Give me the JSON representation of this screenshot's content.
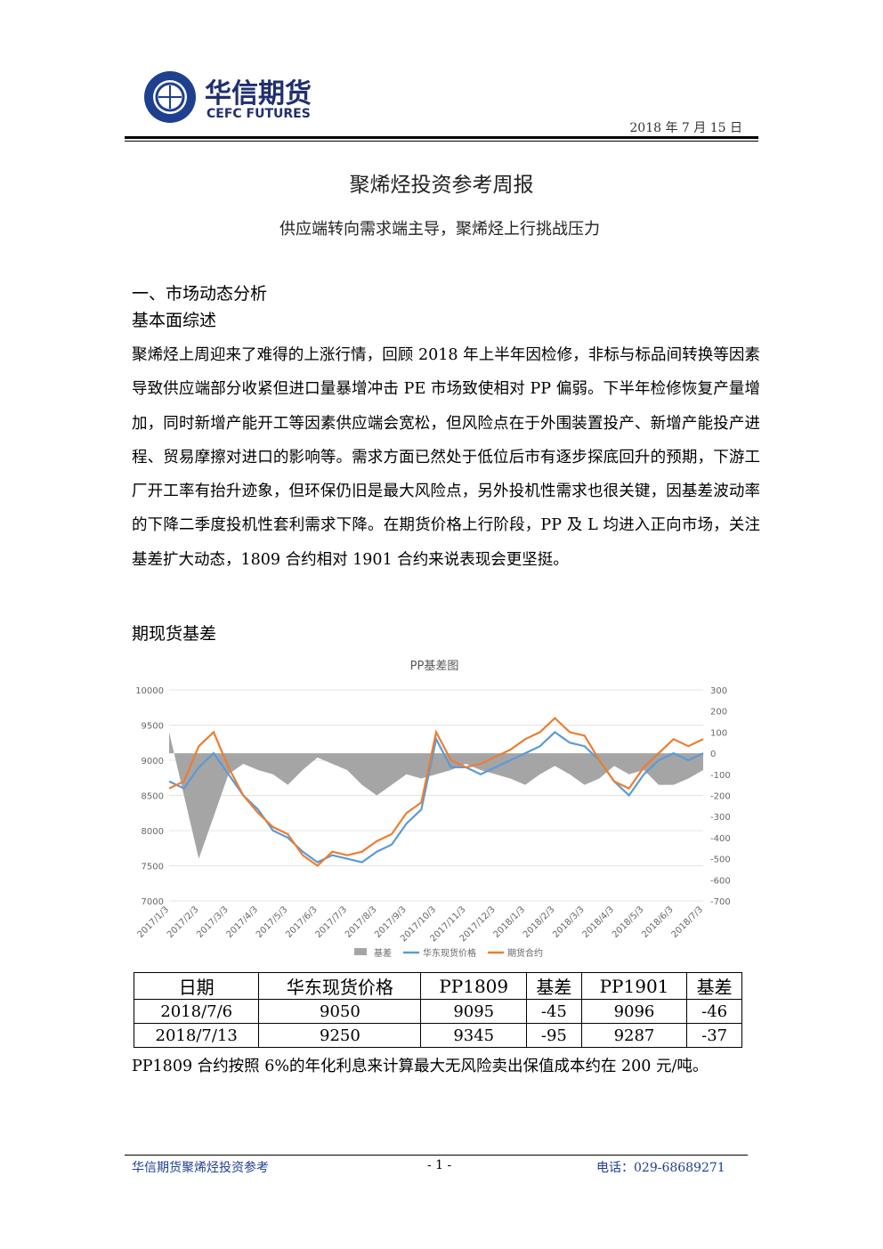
{
  "header": {
    "logo_cn": "华信期货",
    "logo_en": "CEFC FUTURES",
    "date": "2018 年 7 月 15 日"
  },
  "title": "聚烯烃投资参考周报",
  "subtitle": "供应端转向需求端主导，聚烯烃上行挑战压力",
  "section": "一、市场动态分析",
  "subsection_1": "基本面综述",
  "paragraph": "聚烯烃上周迎来了难得的上涨行情，回顾 2018 年上半年因检修，非标与标品间转换等因素导致供应端部分收紧但进口量暴增冲击 PE 市场致使相对 PP 偏弱。下半年检修恢复产量增加，同时新增产能开工等因素供应端会宽松，但风险点在于外围装置投产、新增产能投产进程、贸易摩擦对进口的影响等。需求方面已然处于低位后市有逐步探底回升的预期，下游工厂开工率有抬升迹象，但环保仍旧是最大风险点，另外投机性需求也很关键，因基差波动率的下降二季度投机性套利需求下降。在期货价格上行阶段，PP 及 L 均进入正向市场，关注基差扩大动态，1809 合约相对 1901 合约来说表现会更坚挺。",
  "subsection_2": "期现货基差",
  "chart_data": {
    "type": "line",
    "title": "PP基差图",
    "categories": [
      "2017/1/3",
      null,
      "2017/2/3",
      null,
      "2017/3/3",
      null,
      "2017/4/3",
      null,
      "2017/5/3",
      null,
      "2017/6/3",
      null,
      "2017/7/3",
      null,
      "2017/8/3",
      null,
      "2017/9/3",
      null,
      "2017/10/3",
      null,
      "2017/11/3",
      null,
      "2017/12/3",
      null,
      "2018/1/3",
      null,
      "2018/2/3",
      null,
      "2018/3/3",
      null,
      "2018/4/3",
      null,
      "2018/5/3",
      null,
      "2018/6/3",
      null,
      "2018/7/3"
    ],
    "series": [
      {
        "name": "基差",
        "color": "#a5a5a5",
        "axis": "y2",
        "values": [
          100,
          -200,
          -500,
          -300,
          -100,
          -50,
          -80,
          -100,
          -150,
          -80,
          -20,
          -50,
          -80,
          -150,
          -200,
          -150,
          -100,
          -120,
          -100,
          -80,
          -50,
          -80,
          -100,
          -120,
          -150,
          -100,
          -60,
          -100,
          -150,
          -120,
          -60,
          -100,
          -80,
          -150,
          -150,
          -120,
          -80
        ]
      },
      {
        "name": "华东现货价格",
        "color": "#5b9bd5",
        "values": [
          8700,
          8600,
          8900,
          9100,
          8800,
          8500,
          8300,
          8000,
          7900,
          7700,
          7550,
          7650,
          7600,
          7550,
          7700,
          7800,
          8100,
          8300,
          9300,
          8900,
          8900,
          8800,
          8900,
          9000,
          9100,
          9200,
          9400,
          9250,
          9200,
          9000,
          8700,
          8500,
          8800,
          9000,
          9100,
          9000,
          9100
        ]
      },
      {
        "name": "期货合约",
        "color": "#ed7d31",
        "values": [
          8600,
          8700,
          9200,
          9400,
          8900,
          8500,
          8250,
          8050,
          7950,
          7650,
          7500,
          7700,
          7650,
          7700,
          7850,
          7950,
          8250,
          8400,
          9400,
          9000,
          8900,
          8950,
          9050,
          9150,
          9300,
          9400,
          9600,
          9400,
          9350,
          9000,
          8700,
          8600,
          8900,
          9100,
          9300,
          9200,
          9300
        ]
      }
    ],
    "ylim": [
      7000,
      10000
    ],
    "yticks": [
      7000,
      7500,
      8000,
      8500,
      9000,
      9500,
      10000
    ],
    "y2lim": [
      -700,
      300
    ],
    "y2ticks": [
      -700,
      -600,
      -500,
      -400,
      -300,
      -200,
      -100,
      0,
      100,
      200,
      300
    ],
    "legend": "bottom"
  },
  "table": {
    "header": [
      "日期",
      "华东现货价格",
      "PP1809",
      "基差",
      "PP1901",
      "基差"
    ],
    "rows": [
      [
        "2018/7/6",
        9050,
        9095,
        -45,
        9096,
        -46
      ],
      [
        "2018/7/13",
        9250,
        9345,
        -95,
        9287,
        -37
      ]
    ]
  },
  "note": "PP1809 合约按照 6%的年化利息来计算最大无风险卖出保值成本约在 200 元/吨。",
  "footer": {
    "left": "华信期货聚烯烃投资参考",
    "center": "- 1 -",
    "right": "电话：029-68689271"
  }
}
